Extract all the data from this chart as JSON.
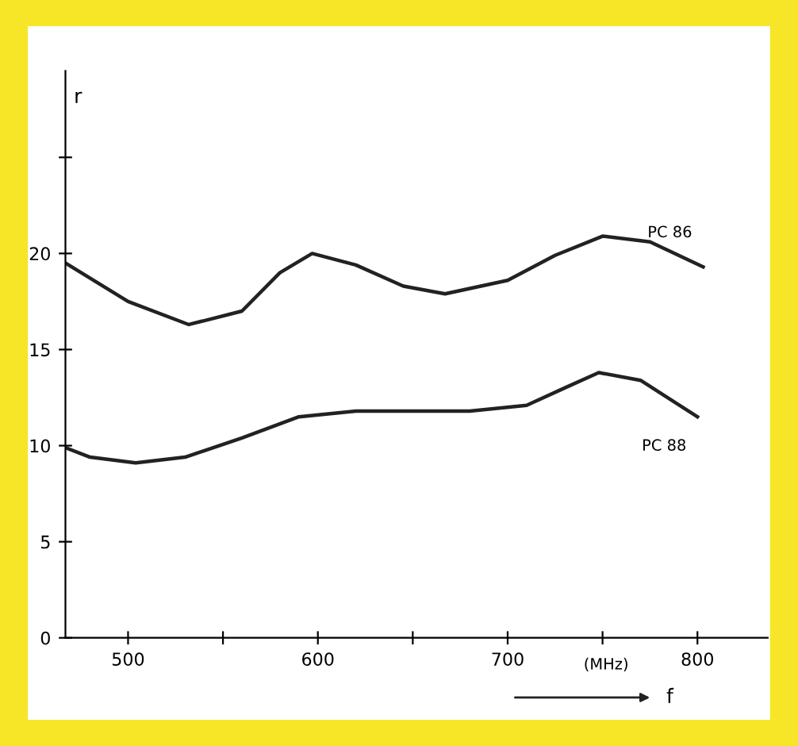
{
  "chart_data": {
    "type": "line",
    "xlabel": "f",
    "ylabel": "r",
    "annotations": [
      "(MHz)"
    ],
    "xlim": [
      467,
      837
    ],
    "ylim": [
      0,
      29.5
    ],
    "xticks": [
      500,
      {
        "value": 550,
        "label": null
      },
      600,
      {
        "value": 650,
        "label": null
      },
      700,
      {
        "value": 750,
        "label": null
      },
      800
    ],
    "yticks": [
      0,
      5,
      10,
      15,
      20,
      {
        "value": 25,
        "label": null
      }
    ],
    "grid": false,
    "legend": false,
    "series": [
      {
        "name": "PC 86",
        "color": "#222222",
        "x": [
          467,
          500,
          532,
          560,
          580,
          597,
          620,
          645,
          667,
          700,
          725,
          750,
          775,
          803
        ],
        "values": [
          19.5,
          17.5,
          16.3,
          17.0,
          19.0,
          20.0,
          19.4,
          18.3,
          17.9,
          18.6,
          19.9,
          20.9,
          20.6,
          19.3
        ]
      },
      {
        "name": "PC 88",
        "color": "#222222",
        "x": [
          467,
          480,
          504,
          530,
          560,
          590,
          620,
          680,
          710,
          730,
          748,
          770,
          800
        ],
        "values": [
          9.9,
          9.4,
          9.1,
          9.4,
          10.4,
          11.5,
          11.8,
          11.8,
          12.1,
          13.0,
          13.8,
          13.4,
          11.5
        ]
      }
    ]
  }
}
